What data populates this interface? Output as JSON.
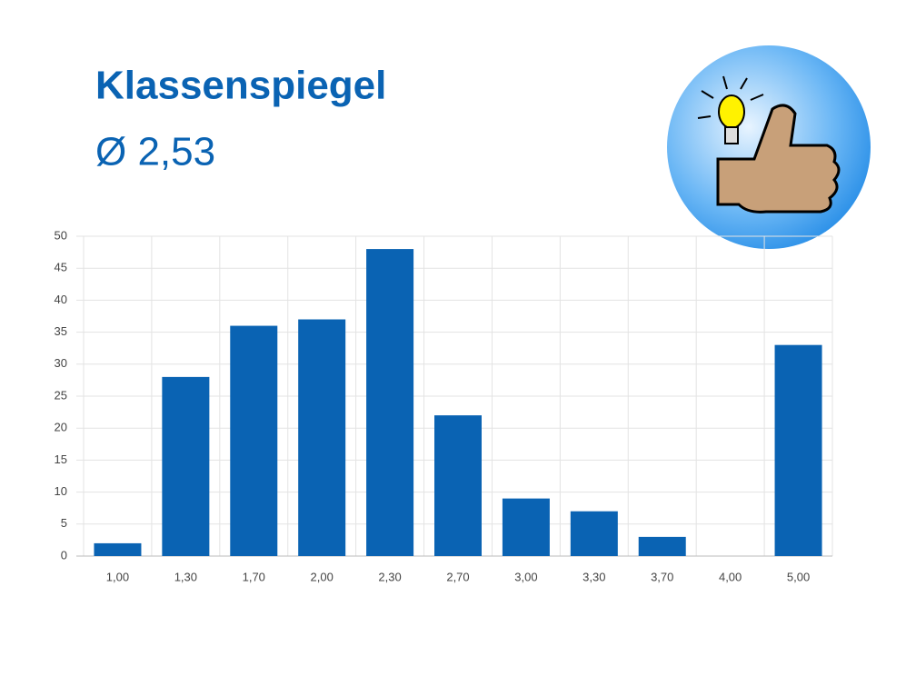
{
  "chart_data": {
    "type": "bar",
    "title": "Klassenspiegel",
    "subtitle": "Ø 2,53",
    "categories": [
      "1,00",
      "1,30",
      "1,70",
      "2,00",
      "2,30",
      "2,70",
      "3,00",
      "3,30",
      "3,70",
      "4,00",
      "5,00"
    ],
    "values": [
      2,
      28,
      36,
      37,
      48,
      22,
      9,
      7,
      3,
      0,
      33
    ],
    "color": "#0a63b3",
    "ylim": [
      0,
      50
    ],
    "yticks": [
      0,
      5,
      10,
      15,
      20,
      25,
      30,
      35,
      40,
      45,
      50
    ],
    "grid": true
  }
}
